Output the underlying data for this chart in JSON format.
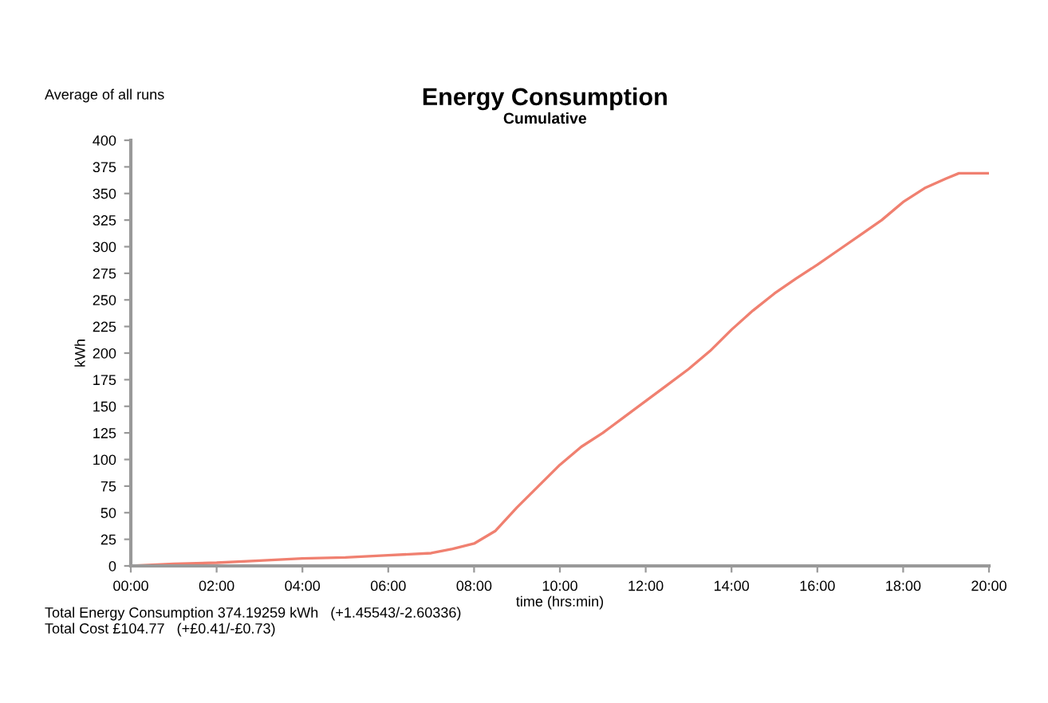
{
  "chart_data": {
    "type": "line",
    "title": "Energy Consumption",
    "subtitle": "Cumulative",
    "xlabel": "time (hrs:min)",
    "ylabel": "kWh",
    "annotations": [
      "Average of all runs",
      "Total Energy Consumption 374.19259 kWh   (+1.45543/-2.60336)",
      "Total Cost £104.77   (+£0.41/-£0.73)"
    ],
    "series": [
      {
        "color": "#f08070",
        "x": [
          0,
          1,
          2,
          3,
          4,
          5,
          6,
          7,
          7.5,
          8,
          8.5,
          9,
          9.5,
          10,
          10.5,
          11,
          11.5,
          12,
          12.5,
          13,
          13.5,
          14,
          14.5,
          15,
          15.5,
          16,
          16.5,
          17,
          17.5,
          18,
          18.5,
          19,
          19.3,
          20
        ],
        "values": [
          0,
          2,
          3,
          5,
          7,
          8,
          10,
          12,
          16,
          21,
          33,
          55,
          75,
          95,
          112,
          125,
          140,
          155,
          170,
          185,
          202,
          222,
          240,
          256,
          270,
          283,
          297,
          311,
          325,
          342,
          355,
          364,
          369,
          369
        ]
      }
    ],
    "xlim": [
      0,
      20
    ],
    "xticks": [
      {
        "value": 0,
        "label": "00:00"
      },
      {
        "value": 2,
        "label": "02:00"
      },
      {
        "value": 4,
        "label": "04:00"
      },
      {
        "value": 6,
        "label": "06:00"
      },
      {
        "value": 8,
        "label": "08:00"
      },
      {
        "value": 10,
        "label": "10:00"
      },
      {
        "value": 12,
        "label": "12:00"
      },
      {
        "value": 14,
        "label": "14:00"
      },
      {
        "value": 16,
        "label": "16:00"
      },
      {
        "value": 18,
        "label": "18:00"
      },
      {
        "value": 20,
        "label": "20:00"
      }
    ],
    "ylim": [
      0,
      400
    ],
    "yticks": [
      0,
      25,
      50,
      75,
      100,
      125,
      150,
      175,
      200,
      225,
      250,
      275,
      300,
      325,
      350,
      375,
      400
    ],
    "grid": false,
    "legend": false,
    "marker": "none",
    "line_style": "solid"
  }
}
